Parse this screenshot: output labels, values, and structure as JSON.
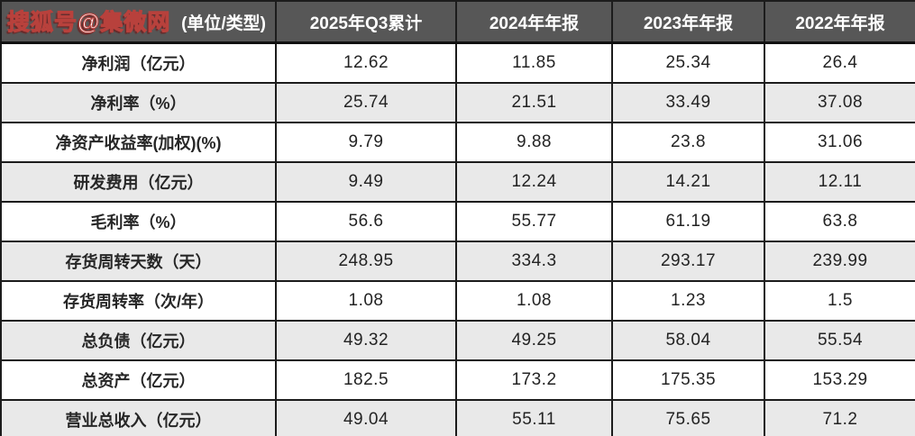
{
  "watermark": {
    "text": "搜狐号@集微网",
    "fill_color": "#ffffff",
    "outline_color": "#b8413c"
  },
  "colors": {
    "header_bg": "#575757",
    "header_text": "#ffffff",
    "row_alt_bg": "#e9e9e9",
    "row_bg": "#ffffff",
    "border": "#1c1c1c",
    "cell_text": "#262626"
  },
  "chart_data": {
    "type": "table",
    "title": "",
    "columns": [
      "(单位/类型)",
      "2025年Q3累计",
      "2024年年报",
      "2023年年报",
      "2022年年报"
    ],
    "rows": [
      [
        "净利润（亿元）",
        "12.62",
        "11.85",
        "25.34",
        "26.4"
      ],
      [
        "净利率（%）",
        "25.74",
        "21.51",
        "33.49",
        "37.08"
      ],
      [
        "净资产收益率(加权)(%)",
        "9.79",
        "9.88",
        "23.8",
        "31.06"
      ],
      [
        "研发费用（亿元）",
        "9.49",
        "12.24",
        "14.21",
        "12.11"
      ],
      [
        "毛利率（%）",
        "56.6",
        "55.77",
        "61.19",
        "63.8"
      ],
      [
        "存货周转天数（天）",
        "248.95",
        "334.3",
        "293.17",
        "239.99"
      ],
      [
        "存货周转率（次/年）",
        "1.08",
        "1.08",
        "1.23",
        "1.5"
      ],
      [
        "总负债（亿元）",
        "49.32",
        "49.25",
        "58.04",
        "55.54"
      ],
      [
        "总资产（亿元）",
        "182.5",
        "173.2",
        "175.35",
        "153.29"
      ],
      [
        "营业总收入（亿元）",
        "49.04",
        "55.11",
        "75.65",
        "71.2"
      ]
    ]
  }
}
